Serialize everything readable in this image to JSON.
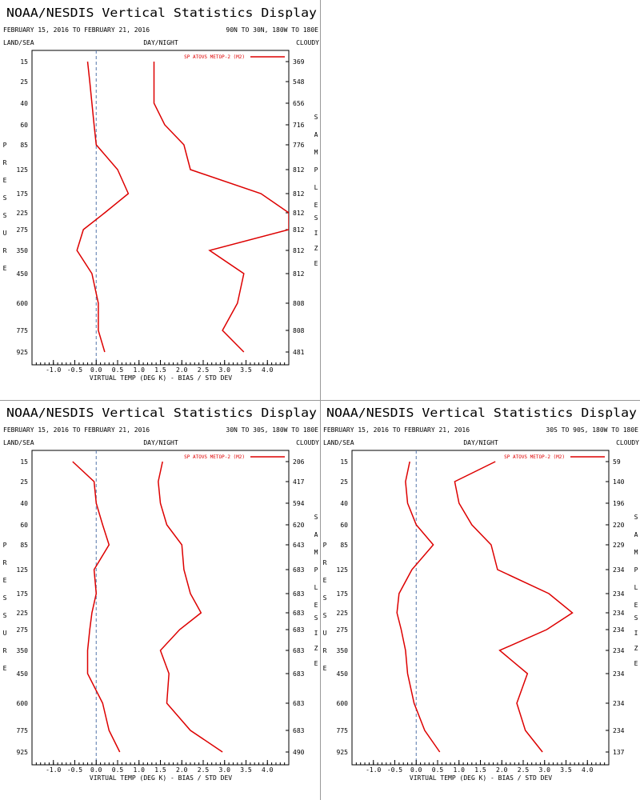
{
  "common": {
    "title": "NOAA/NESDIS Vertical Statistics Display",
    "date_range": "FEBRUARY 15, 2016 TO FEBRUARY 21, 2016",
    "land_sea": "LAND/SEA",
    "day_night": "DAY/NIGHT",
    "cloudy": "CLOUDY",
    "legend": "SP ATOVS METOP-2 (M2)",
    "xlabel": "VIRTUAL TEMP (DEG K) - BIAS / STD DEV",
    "ylabel_letters": [
      "P",
      "R",
      "E",
      "S",
      "S",
      "U",
      "R",
      "E"
    ],
    "right_label_1": [
      "S",
      "A",
      "M",
      "P",
      "L",
      "E"
    ],
    "right_label_2": [
      "S",
      "I",
      "Z",
      "E"
    ],
    "x_ticks": [
      "-1.0",
      "-0.5",
      "0.0",
      "0.5",
      "1.0",
      "1.5",
      "2.0",
      "2.5",
      "3.0",
      "3.5",
      "4.0"
    ],
    "line_color": "#dd0000"
  },
  "chart_data": [
    {
      "type": "line",
      "region": "90N TO 30N, 180W TO 180E",
      "levels": [
        "15",
        "25",
        "40",
        "60",
        "85",
        "125",
        "175",
        "225",
        "275",
        "350",
        "450",
        "600",
        "775",
        "925"
      ],
      "sample_size": [
        "369",
        "548",
        "656",
        "716",
        "776",
        "812",
        "812",
        "812",
        "812",
        "812",
        "812",
        "808",
        "808",
        "481"
      ],
      "xlim": [
        -1.5,
        4.5
      ],
      "series": [
        {
          "values": [
            -0.2,
            -0.15,
            -0.1,
            -0.05,
            0.0,
            0.5,
            0.75,
            0.2,
            -0.3,
            -0.45,
            -0.1,
            0.05,
            0.05,
            0.2
          ]
        },
        {
          "values": [
            1.35,
            1.35,
            1.35,
            1.6,
            2.05,
            2.2,
            3.85,
            4.5,
            4.5,
            2.65,
            3.45,
            3.3,
            2.95,
            3.45
          ]
        }
      ]
    },
    {
      "type": "line",
      "region": "30N TO 30S, 180W TO 180E",
      "levels": [
        "15",
        "25",
        "40",
        "60",
        "85",
        "125",
        "175",
        "225",
        "275",
        "350",
        "450",
        "600",
        "775",
        "925"
      ],
      "sample_size": [
        "206",
        "417",
        "594",
        "620",
        "643",
        "683",
        "683",
        "683",
        "683",
        "683",
        "683",
        "683",
        "683",
        "490"
      ],
      "xlim": [
        -1.5,
        4.5
      ],
      "series": [
        {
          "values": [
            -0.55,
            -0.05,
            0.0,
            0.15,
            0.3,
            -0.05,
            0.0,
            -0.1,
            -0.15,
            -0.2,
            -0.2,
            0.15,
            0.3,
            0.55
          ]
        },
        {
          "values": [
            1.55,
            1.45,
            1.5,
            1.65,
            2.0,
            2.05,
            2.2,
            2.45,
            1.95,
            1.5,
            1.7,
            1.65,
            2.2,
            2.95
          ]
        }
      ]
    },
    {
      "type": "line",
      "region": "30S TO 90S, 180W TO 180E",
      "levels": [
        "15",
        "25",
        "40",
        "60",
        "85",
        "125",
        "175",
        "225",
        "275",
        "350",
        "450",
        "600",
        "775",
        "925"
      ],
      "sample_size": [
        "59",
        "140",
        "196",
        "220",
        "229",
        "234",
        "234",
        "234",
        "234",
        "234",
        "234",
        "234",
        "234",
        "137"
      ],
      "xlim": [
        -1.5,
        4.5
      ],
      "series": [
        {
          "values": [
            -0.15,
            -0.25,
            -0.2,
            0.0,
            0.4,
            -0.1,
            -0.4,
            -0.45,
            -0.35,
            -0.25,
            -0.2,
            -0.05,
            0.2,
            0.55
          ]
        },
        {
          "values": [
            1.85,
            0.9,
            1.0,
            1.3,
            1.75,
            1.9,
            3.1,
            3.65,
            3.05,
            1.95,
            2.6,
            2.35,
            2.55,
            2.95
          ]
        }
      ]
    }
  ]
}
